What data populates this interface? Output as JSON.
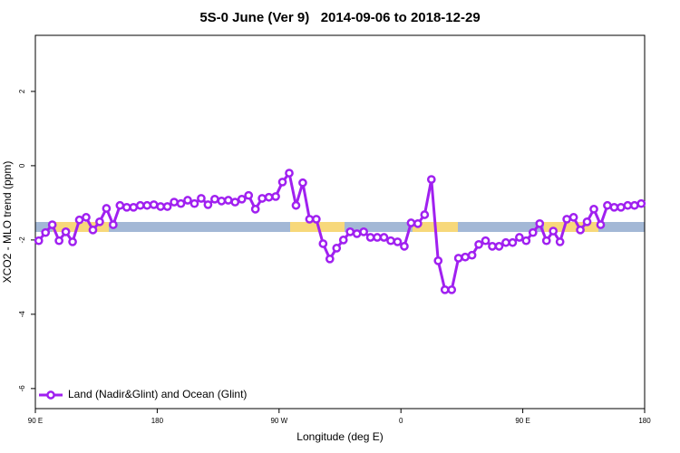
{
  "chart_data": {
    "type": "line",
    "title": "5S-0 June (Ver 9)   2014-09-06 to 2018-12-29",
    "x_label": "Longitude (deg E)",
    "y_label": "XCO2 - MLO trend (ppm)",
    "xlim": [
      90,
      540
    ],
    "ylim": [
      -6.54,
      3.51
    ],
    "xticks": [
      {
        "value": 90,
        "label": "90 E"
      },
      180,
      {
        "value": 270,
        "label": "90 W"
      },
      {
        "value": 360,
        "label": "0"
      },
      {
        "value": 450,
        "label": "90 E"
      },
      {
        "value": 540,
        "label": "180"
      }
    ],
    "yticks": [
      2,
      0,
      -2,
      -4,
      -6
    ],
    "legend": "bottom-left",
    "x": [
      92.5,
      97.5,
      102.5,
      107.5,
      112.5,
      117.5,
      122.5,
      127.5,
      132.5,
      137.5,
      142.5,
      147.5,
      152.5,
      157.5,
      162.5,
      167.5,
      172.5,
      177.5,
      182.5,
      187.5,
      192.5,
      197.5,
      202.5,
      207.5,
      212.5,
      217.5,
      222.5,
      227.5,
      232.5,
      237.5,
      242.5,
      247.5,
      252.5,
      257.5,
      262.5,
      267.5,
      272.5,
      277.5,
      282.5,
      287.5,
      292.5,
      297.5,
      302.5,
      307.5,
      312.5,
      317.5,
      322.5,
      327.5,
      332.5,
      337.5,
      342.5,
      347.5,
      352.5,
      357.5,
      362.5,
      367.5,
      372.5,
      377.5,
      382.5,
      387.5,
      392.5,
      397.5,
      402.5,
      407.5,
      412.5,
      417.5,
      422.5,
      427.5,
      432.5,
      437.5,
      442.5,
      447.5,
      452.5,
      457.5,
      462.5,
      467.5,
      472.5,
      477.5,
      482.5,
      487.5,
      492.5,
      497.5,
      502.5,
      507.5,
      512.5,
      517.5,
      522.5,
      527.5,
      532.5,
      537.5
    ],
    "series": [
      {
        "name": "Land (Nadir&Glint) and Ocean (Glint)",
        "color": "#a020f0",
        "values": [
          -2.02,
          -1.8,
          -1.59,
          -2.02,
          -1.78,
          -2.05,
          -1.46,
          -1.39,
          -1.73,
          -1.51,
          -1.15,
          -1.59,
          -1.07,
          -1.12,
          -1.12,
          -1.07,
          -1.07,
          -1.05,
          -1.1,
          -1.1,
          -0.98,
          -1.02,
          -0.93,
          -1.02,
          -0.88,
          -1.05,
          -0.9,
          -0.95,
          -0.93,
          -0.98,
          -0.9,
          -0.8,
          -1.17,
          -0.88,
          -0.85,
          -0.83,
          -0.44,
          -0.2,
          -1.07,
          -0.46,
          -1.44,
          -1.44,
          -2.1,
          -2.51,
          -2.22,
          -2.0,
          -1.78,
          -1.83,
          -1.78,
          -1.93,
          -1.93,
          -1.93,
          -2.02,
          -2.05,
          -2.17,
          -1.54,
          -1.56,
          -1.32,
          -0.37,
          -2.56,
          -3.34,
          -3.34,
          -2.49,
          -2.46,
          -2.41,
          -2.12,
          -2.02,
          -2.17,
          -2.17,
          -2.07,
          -2.07,
          -1.93,
          -2.02,
          -1.8,
          -1.56,
          -2.02,
          -1.76,
          -2.05,
          -1.44,
          -1.39,
          -1.73,
          -1.51,
          -1.17,
          -1.59,
          -1.07,
          -1.12,
          -1.12,
          -1.07,
          -1.07,
          -1.02
        ]
      }
    ]
  }
}
